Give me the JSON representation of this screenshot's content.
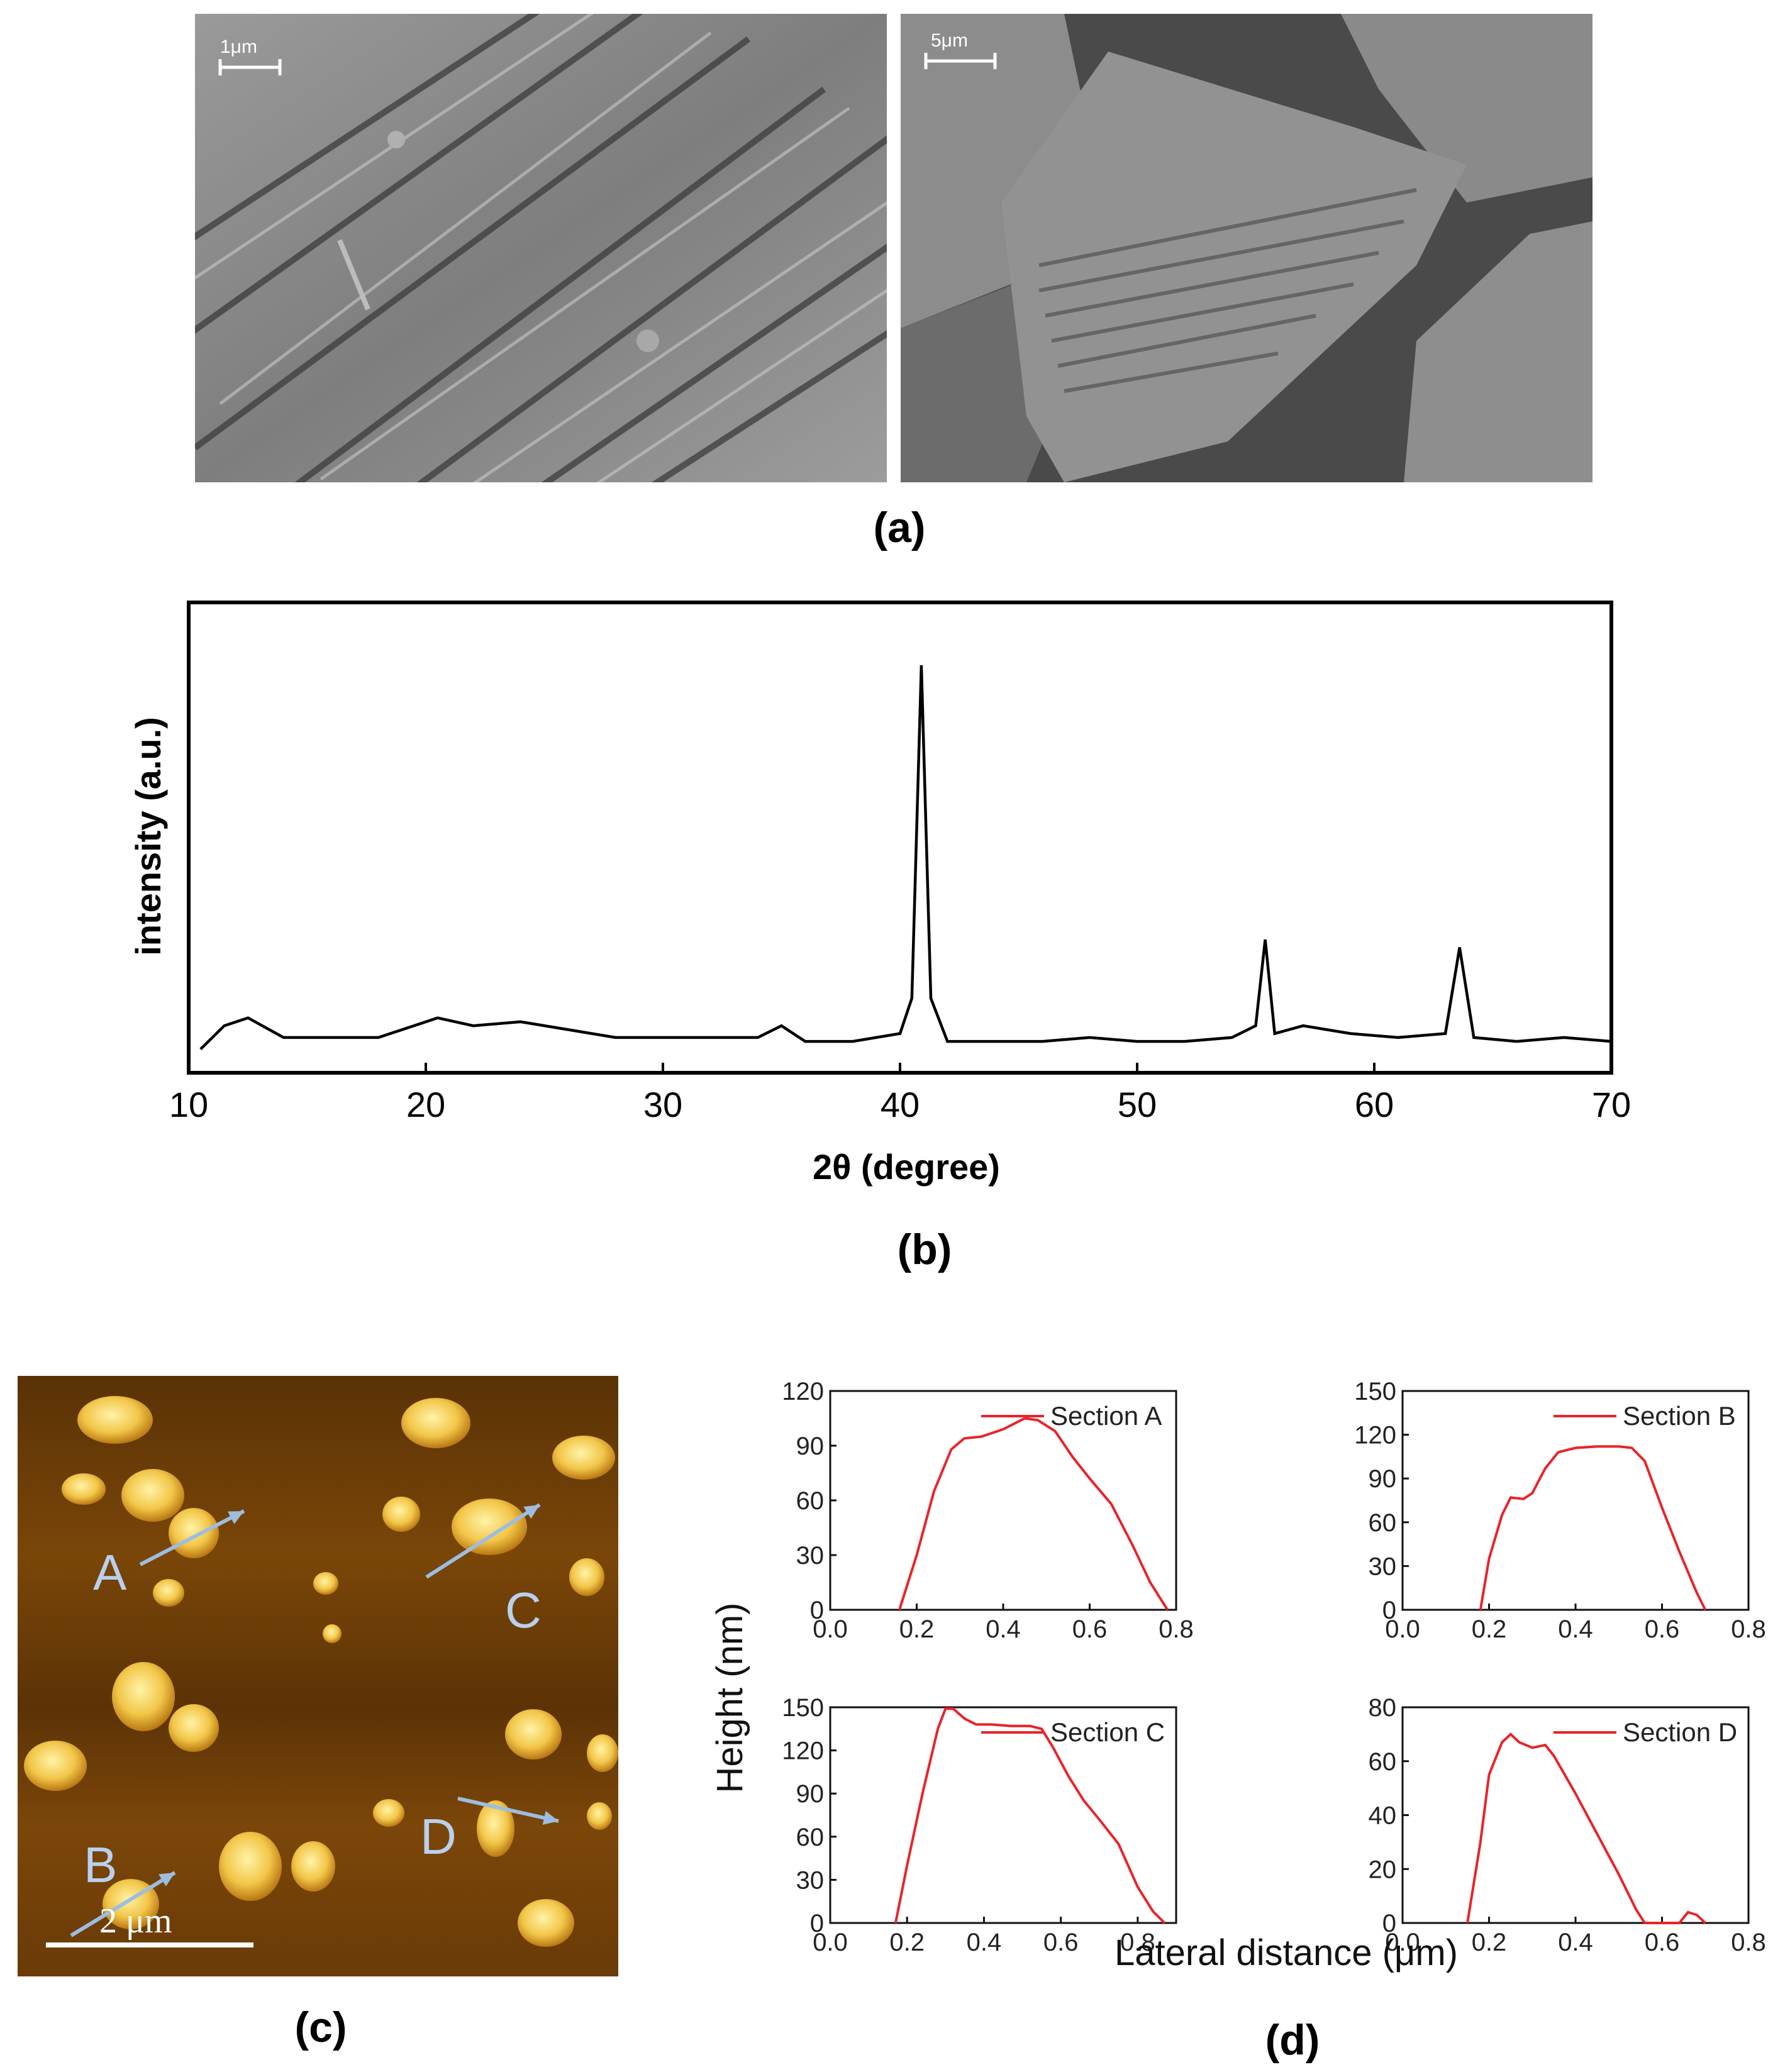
{
  "panels": {
    "a": "(a)",
    "b": "(b)",
    "c": "(c)",
    "d": "(d)"
  },
  "sem_left": {
    "scale": "1μm"
  },
  "sem_right": {
    "scale": "5μm"
  },
  "xrd": {
    "xlabel": "2θ (degree)",
    "ylabel": "intensity (a.u.)",
    "xticks": [
      "10",
      "20",
      "30",
      "40",
      "50",
      "60",
      "70"
    ],
    "color": "#000000"
  },
  "afm": {
    "scale": "2 μm",
    "markers": [
      "A",
      "B",
      "C",
      "D"
    ],
    "arrow_color": "#9dbde0"
  },
  "profiles": {
    "ylabel": "Height (nm)",
    "xlabel": "Lateral distance (μm)",
    "line_color": "#e8242a"
  },
  "chart_data": [
    {
      "type": "line",
      "xlabel": "2θ (degree)",
      "ylabel": "intensity (a.u.)",
      "xlim": [
        10,
        70
      ],
      "series": [
        {
          "x": [
            10.5,
            11.5,
            12.5,
            14,
            16,
            18,
            20.5,
            22,
            24,
            26,
            28,
            30,
            32,
            34,
            35,
            36,
            38,
            40,
            40.5,
            40.9,
            41.3,
            42,
            44,
            46,
            48,
            50,
            52,
            54,
            55,
            55.4,
            55.8,
            57,
            59,
            61,
            63,
            63.6,
            64.2,
            66,
            68,
            70
          ],
          "y": [
            0.02,
            0.08,
            0.1,
            0.05,
            0.05,
            0.05,
            0.1,
            0.08,
            0.09,
            0.07,
            0.05,
            0.05,
            0.05,
            0.05,
            0.08,
            0.04,
            0.04,
            0.06,
            0.15,
            1.0,
            0.15,
            0.04,
            0.04,
            0.04,
            0.05,
            0.04,
            0.04,
            0.05,
            0.08,
            0.3,
            0.06,
            0.08,
            0.06,
            0.05,
            0.06,
            0.28,
            0.05,
            0.04,
            0.05,
            0.04
          ]
        }
      ]
    },
    {
      "type": "line",
      "xlim": [
        0.0,
        0.8
      ],
      "ylim": [
        0,
        120
      ],
      "xticks": [
        "0.0",
        "0.2",
        "0.4",
        "0.6",
        "0.8"
      ],
      "yticks": [
        "0",
        "30",
        "60",
        "90",
        "120"
      ],
      "series": [
        {
          "name": "Section A",
          "x": [
            0.16,
            0.2,
            0.24,
            0.28,
            0.31,
            0.35,
            0.4,
            0.45,
            0.48,
            0.52,
            0.56,
            0.6,
            0.65,
            0.7,
            0.74,
            0.78
          ],
          "y": [
            0,
            30,
            65,
            88,
            94,
            95,
            99,
            105,
            104,
            98,
            84,
            72,
            58,
            35,
            15,
            0
          ]
        }
      ]
    },
    {
      "type": "line",
      "xlim": [
        0.0,
        0.8
      ],
      "ylim": [
        0,
        150
      ],
      "xticks": [
        "0.0",
        "0.2",
        "0.4",
        "0.6",
        "0.8"
      ],
      "yticks": [
        "0",
        "30",
        "60",
        "90",
        "120",
        "150"
      ],
      "series": [
        {
          "name": "Section B",
          "x": [
            0.18,
            0.2,
            0.23,
            0.25,
            0.28,
            0.3,
            0.33,
            0.36,
            0.4,
            0.45,
            0.5,
            0.53,
            0.56,
            0.6,
            0.64,
            0.68,
            0.7
          ],
          "y": [
            0,
            35,
            65,
            77,
            76,
            80,
            97,
            108,
            111,
            112,
            112,
            111,
            102,
            70,
            40,
            12,
            0
          ]
        }
      ]
    },
    {
      "type": "line",
      "xlim": [
        0.0,
        0.9
      ],
      "ylim": [
        0,
        150
      ],
      "xticks": [
        "0.0",
        "0.2",
        "0.4",
        "0.6",
        "0.8"
      ],
      "yticks": [
        "0",
        "30",
        "60",
        "90",
        "120",
        "150"
      ],
      "series": [
        {
          "name": "Section C",
          "x": [
            0.17,
            0.2,
            0.24,
            0.28,
            0.3,
            0.32,
            0.35,
            0.38,
            0.42,
            0.47,
            0.52,
            0.55,
            0.58,
            0.62,
            0.66,
            0.7,
            0.75,
            0.8,
            0.84,
            0.87
          ],
          "y": [
            0,
            40,
            90,
            135,
            149,
            149,
            142,
            138,
            138,
            137,
            137,
            135,
            122,
            102,
            85,
            72,
            55,
            25,
            8,
            0
          ]
        }
      ]
    },
    {
      "type": "line",
      "xlim": [
        0.0,
        0.8
      ],
      "ylim": [
        0,
        80
      ],
      "xticks": [
        "0.0",
        "0.2",
        "0.4",
        "0.6",
        "0.8"
      ],
      "yticks": [
        "0",
        "20",
        "40",
        "60",
        "80"
      ],
      "series": [
        {
          "name": "Section D",
          "x": [
            0.15,
            0.18,
            0.2,
            0.23,
            0.25,
            0.27,
            0.3,
            0.33,
            0.35,
            0.4,
            0.45,
            0.5,
            0.54,
            0.56,
            0.6,
            0.64,
            0.66,
            0.68,
            0.7
          ],
          "y": [
            0,
            30,
            55,
            67,
            70,
            67,
            65,
            66,
            62,
            48,
            33,
            18,
            5,
            0,
            0,
            0,
            4,
            3,
            0
          ]
        }
      ]
    }
  ]
}
